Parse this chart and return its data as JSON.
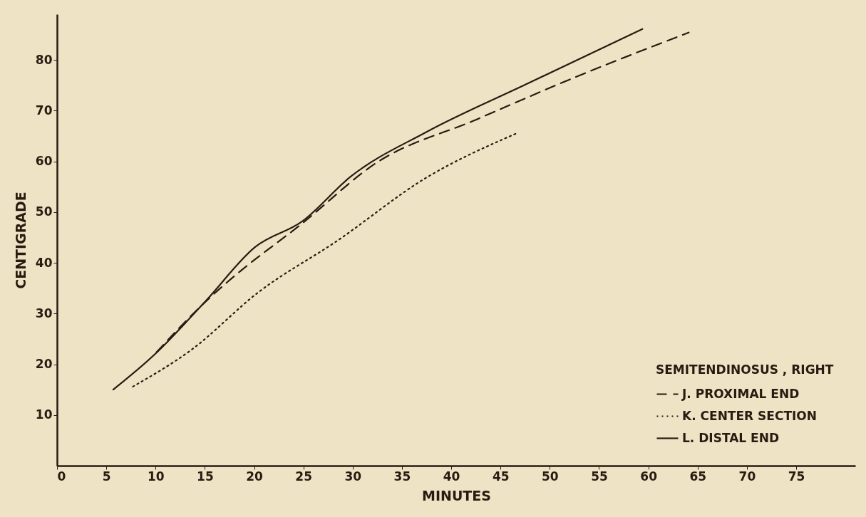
{
  "chart_data": {
    "type": "line",
    "xlabel": "MINUTES",
    "ylabel": "CENTIGRADE",
    "legend_title": "SEMITENDINOSUS , RIGHT",
    "series": [
      {
        "name": "J. PROXIMAL END",
        "color": "#2a1a10",
        "line_style": "dashed",
        "x": [
          10.1,
          15.6,
          17.7,
          24.9,
          32.4,
          42.5,
          52.6,
          64.1
        ],
        "values": [
          22.4,
          33.3,
          36.9,
          47.8,
          59.7,
          68.2,
          76.6,
          85.4
        ]
      },
      {
        "name": "K. CENTER SECTION",
        "color": "#2a1a10",
        "line_style": "dotted",
        "x": [
          7.7,
          13.6,
          20.5,
          28.4,
          37.4,
          46.6
        ],
        "values": [
          15.6,
          22.8,
          34.3,
          44.3,
          56.7,
          65.5
        ]
      },
      {
        "name": "L. DISTAL END",
        "color": "#2a1a10",
        "line_style": "solid",
        "x": [
          5.7,
          10.0,
          15.1,
          20.1,
          24.9,
          29.8,
          37.4,
          47.6,
          59.4
        ],
        "values": [
          15.0,
          22.1,
          32.5,
          43.1,
          48.2,
          57.0,
          65.7,
          75.2,
          86.1
        ]
      }
    ],
    "xlim": [
      0,
      81
    ],
    "xticks": [
      0,
      5,
      10,
      15,
      20,
      25,
      30,
      35,
      40,
      45,
      50,
      55,
      60,
      65,
      70,
      75
    ],
    "ylim": [
      0,
      89
    ],
    "yticks": [
      10,
      20,
      30,
      40,
      50,
      60,
      70,
      80
    ],
    "legend": "bottom right",
    "marker": "none"
  }
}
